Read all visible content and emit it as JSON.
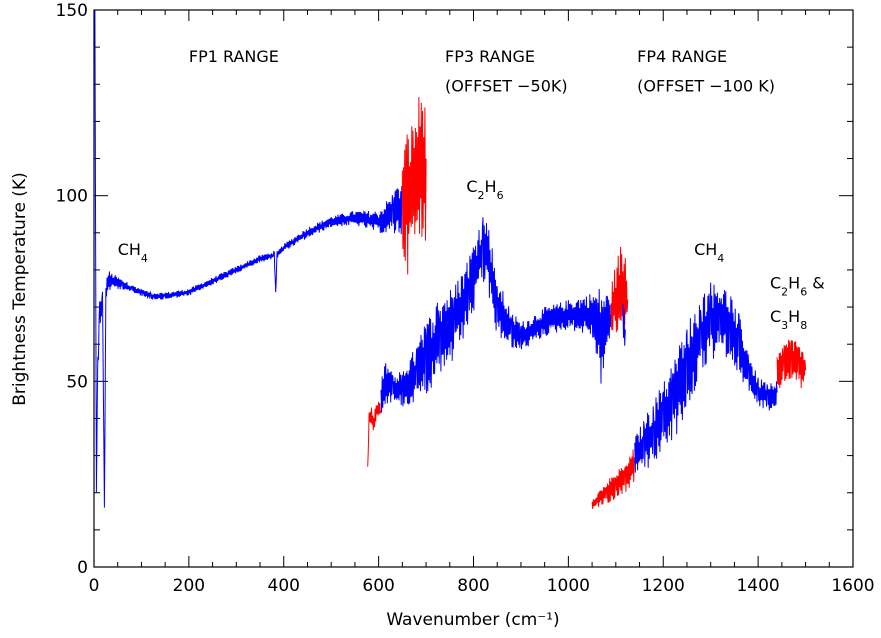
{
  "chart_data": {
    "type": "line",
    "xlabel": "Wavenumber (cm⁻¹)",
    "ylabel": "Brightness Temperature (K)",
    "xlim": [
      0,
      1600
    ],
    "ylim": [
      0,
      150
    ],
    "xticks": [
      0,
      200,
      400,
      600,
      800,
      1000,
      1200,
      1400,
      1600
    ],
    "yticks": [
      0,
      50,
      100,
      150
    ],
    "xtick_labels": [
      "0",
      "200",
      "400",
      "600",
      "800",
      "1000",
      "1200",
      "1400",
      "1600"
    ],
    "ytick_labels": [
      "0",
      "50",
      "100",
      "150"
    ],
    "grid": false,
    "colors": {
      "blue": "#0000ff",
      "red": "#ff0000",
      "axis": "#000000"
    },
    "series": [
      {
        "color": "blue",
        "x": [
          2,
          5,
          8,
          12,
          18,
          22,
          25,
          30,
          40,
          60,
          80,
          100,
          120,
          150,
          200,
          250,
          300,
          350,
          380,
          383,
          386,
          400,
          450,
          500,
          550,
          600,
          630,
          650
        ],
        "y": [
          150,
          20,
          55,
          68,
          72,
          16,
          74,
          77,
          77,
          76,
          75,
          74,
          73,
          73,
          74,
          77,
          80,
          83,
          84,
          74,
          84,
          86,
          90,
          93,
          94,
          93,
          95,
          97
        ],
        "noise": [
          0,
          0,
          4,
          4,
          3,
          0,
          3,
          3,
          2,
          1.5,
          1,
          1,
          1,
          1,
          1,
          1,
          1,
          1,
          1,
          0,
          1,
          1,
          1.5,
          1.5,
          2,
          3,
          6,
          8
        ]
      },
      {
        "color": "red",
        "x": [
          650,
          660,
          670,
          680,
          690,
          700
        ],
        "y": [
          100,
          98,
          102,
          105,
          108,
          110
        ],
        "noise": [
          15,
          20,
          18,
          20,
          22,
          22
        ]
      },
      {
        "color": "red",
        "x": [
          577,
          580,
          585,
          590,
          595,
          600,
          605
        ],
        "y": [
          27,
          40,
          41,
          39,
          42,
          43,
          42
        ],
        "noise": [
          0,
          2,
          2,
          3,
          2,
          2,
          2
        ]
      },
      {
        "color": "blue",
        "x": [
          605,
          615,
          630,
          650,
          680,
          700,
          730,
          760,
          790,
          820,
          830,
          850,
          880,
          900,
          950,
          1000,
          1050,
          1060,
          1070,
          1080,
          1090
        ],
        "y": [
          45,
          50,
          48,
          48,
          52,
          56,
          62,
          66,
          74,
          86,
          84,
          70,
          64,
          62,
          66,
          68,
          68,
          65,
          62,
          66,
          68
        ],
        "noise": [
          5,
          6,
          4,
          5,
          8,
          10,
          12,
          10,
          10,
          10,
          10,
          8,
          5,
          4,
          4,
          4,
          6,
          10,
          14,
          8,
          6
        ]
      },
      {
        "color": "red",
        "x": [
          1090,
          1100,
          1110,
          1120,
          1125
        ],
        "y": [
          68,
          72,
          75,
          74,
          72
        ],
        "noise": [
          8,
          10,
          12,
          12,
          10
        ]
      },
      {
        "color": "blue",
        "x": [
          1115,
          1120
        ],
        "y": [
          68,
          64
        ],
        "noise": [
          6,
          6
        ]
      },
      {
        "color": "red",
        "x": [
          1050,
          1060,
          1080,
          1100,
          1120,
          1140
        ],
        "y": [
          17,
          18,
          20,
          22,
          24,
          28
        ],
        "noise": [
          1.5,
          2,
          3,
          4,
          4,
          5
        ]
      },
      {
        "color": "blue",
        "x": [
          1140,
          1160,
          1180,
          1200,
          1220,
          1250,
          1280,
          1300,
          1320,
          1340,
          1360,
          1380,
          1400,
          1420,
          1440
        ],
        "y": [
          30,
          33,
          36,
          40,
          44,
          54,
          62,
          66,
          67,
          65,
          60,
          52,
          47,
          46,
          47
        ],
        "noise": [
          5,
          7,
          9,
          10,
          11,
          12,
          11,
          11,
          10,
          9,
          8,
          6,
          4,
          4,
          4
        ]
      },
      {
        "color": "red",
        "x": [
          1440,
          1455,
          1470,
          1485,
          1500
        ],
        "y": [
          52,
          55,
          56,
          54,
          53
        ],
        "noise": [
          5,
          6,
          6,
          6,
          5
        ]
      }
    ],
    "annotations": [
      {
        "x": 200,
        "y": 136,
        "text": "FP1  RANGE"
      },
      {
        "x": 740,
        "y": 136,
        "text": "FP3  RANGE"
      },
      {
        "x": 740,
        "y": 128,
        "text": "(OFFSET −50K)"
      },
      {
        "x": 1145,
        "y": 136,
        "text": "FP4  RANGE"
      },
      {
        "x": 1145,
        "y": 128,
        "text": "(OFFSET −100 K)"
      },
      {
        "x": 50,
        "y": 84,
        "text": "CH",
        "sub": "4"
      },
      {
        "x": 785,
        "y": 101,
        "text": "C",
        "sub": "2",
        "text2": "H",
        "sub2": "6"
      },
      {
        "x": 1265,
        "y": 84,
        "text": "CH",
        "sub": "4"
      },
      {
        "x": 1425,
        "y": 75,
        "text": "C",
        "sub": "2",
        "text2": "H",
        "sub2": "6",
        "text3": "  &"
      },
      {
        "x": 1425,
        "y": 66,
        "text": "C",
        "sub": "3",
        "text2": "H",
        "sub2": "8"
      }
    ]
  }
}
